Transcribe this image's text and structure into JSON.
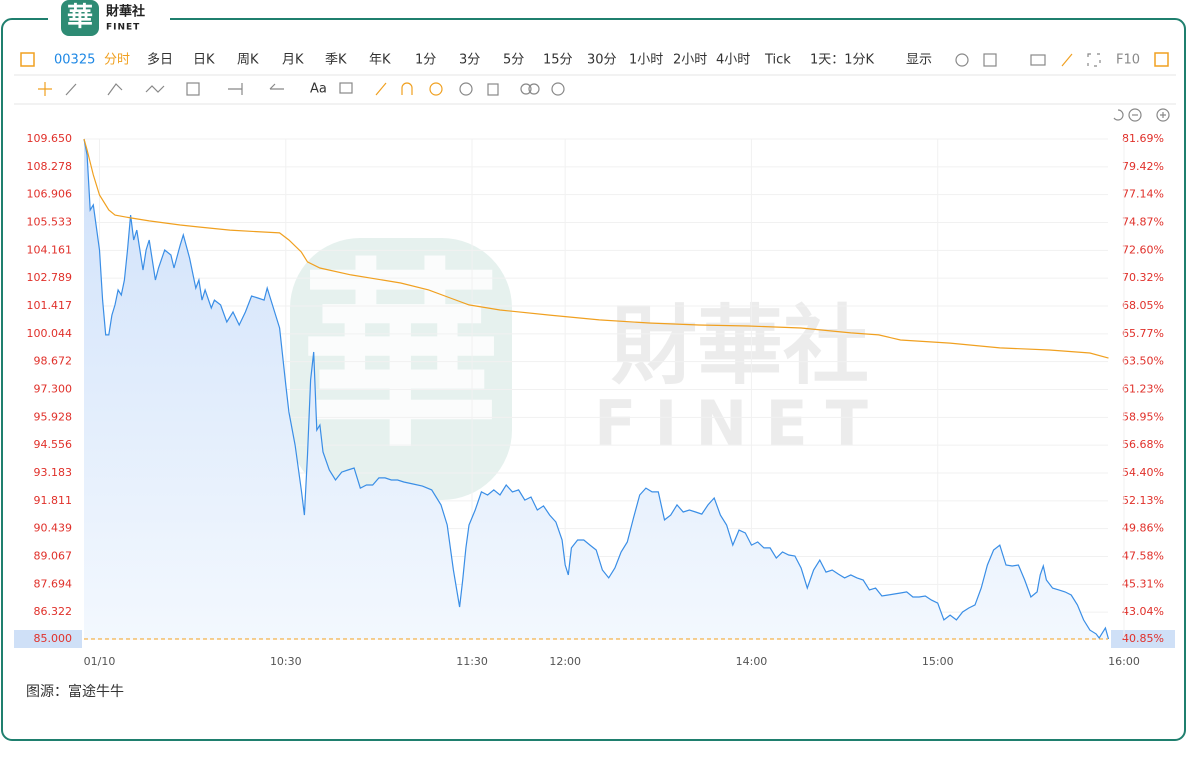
{
  "header": {
    "brand": "財華社",
    "brand_en": "FINET",
    "logo_char": "華"
  },
  "toolbar": {
    "code": "00325",
    "periods": [
      "分时",
      "多日",
      "日K",
      "周K",
      "月K",
      "季K",
      "年K",
      "1分",
      "3分",
      "5分",
      "15分",
      "30分",
      "1小时",
      "2小时",
      "4小时",
      "Tick"
    ],
    "interval": "1天：1分K",
    "display": "显示",
    "f10": "F10",
    "font": "Aa"
  },
  "watermark": {
    "seal": "華",
    "text": "財華社",
    "text_en": "FINET"
  },
  "source": "图源：富途牛牛",
  "chart_data": {
    "type": "line",
    "xlim": [
      -5,
      330
    ],
    "xticks": [
      {
        "value": 0,
        "label": "01/10"
      },
      {
        "value": 60,
        "label": "10:30"
      },
      {
        "value": 120,
        "label": "11:30"
      },
      {
        "value": 150,
        "label": "12:00"
      },
      {
        "value": 210,
        "label": "14:00"
      },
      {
        "value": 270,
        "label": "15:00"
      },
      {
        "value": 330,
        "label": "16:00"
      }
    ],
    "ylim": [
      85,
      109.65
    ],
    "yticks": [
      {
        "value": 109.65,
        "label": "109.650"
      },
      108.278,
      106.906,
      105.533,
      104.161,
      102.789,
      101.417,
      100.044,
      98.672,
      {
        "value": 97.3,
        "label": "97.300"
      },
      95.928,
      94.556,
      93.183,
      91.811,
      90.439,
      89.067,
      87.694,
      86.322,
      {
        "value": 85,
        "label": "85.000"
      }
    ],
    "y2lim": [
      40.85,
      81.69
    ],
    "y2ticks": [
      {
        "value": 81.69,
        "label": "81.69%"
      },
      {
        "value": 79.42,
        "label": "79.42%"
      },
      {
        "value": 77.14,
        "label": "77.14%"
      },
      {
        "value": 74.87,
        "label": "74.87%"
      },
      {
        "value": 72.6,
        "label": "72.60%"
      },
      {
        "value": 70.32,
        "label": "70.32%"
      },
      {
        "value": 68.05,
        "label": "68.05%"
      },
      {
        "value": 65.77,
        "label": "65.77%"
      },
      {
        "value": 63.5,
        "label": "63.50%"
      },
      {
        "value": 61.23,
        "label": "61.23%"
      },
      {
        "value": 58.95,
        "label": "58.95%"
      },
      {
        "value": 56.68,
        "label": "56.68%"
      },
      {
        "value": 54.4,
        "label": "54.40%"
      },
      {
        "value": 52.13,
        "label": "52.13%"
      },
      {
        "value": 49.86,
        "label": "49.86%"
      },
      {
        "value": 47.58,
        "label": "47.58%"
      },
      {
        "value": 45.31,
        "label": "45.31%"
      },
      {
        "value": 43.04,
        "label": "43.04%"
      },
      {
        "value": 40.85,
        "label": "40.85%"
      }
    ],
    "grid": true,
    "reference_value": 85,
    "series": [
      {
        "color": "#3a8ee6",
        "area": true,
        "x": [
          -5,
          -4,
          -3,
          -2,
          0,
          1,
          2,
          3,
          4,
          5,
          6,
          7,
          8,
          9,
          10,
          11,
          12,
          14,
          15,
          16,
          18,
          19,
          21,
          23,
          24,
          26,
          27,
          29,
          31,
          32,
          33,
          34,
          36,
          37,
          39,
          41,
          43,
          45,
          47,
          49,
          51,
          53,
          54,
          56,
          58,
          60,
          61,
          63,
          65,
          66,
          67,
          68,
          69,
          70,
          71,
          72,
          74,
          76,
          78,
          80,
          82,
          84,
          86,
          88,
          90,
          92,
          94,
          96,
          98,
          101,
          104,
          107,
          110,
          112,
          114,
          116,
          117,
          118,
          119,
          121,
          123,
          125,
          127,
          129,
          131,
          133,
          135,
          137,
          139,
          141,
          143,
          145,
          147,
          149,
          150,
          151,
          152,
          154,
          156,
          158,
          160,
          162,
          164,
          166,
          168,
          170,
          172,
          174,
          176,
          178,
          180,
          182,
          184,
          186,
          188,
          190,
          192,
          194,
          196,
          198,
          200,
          202,
          204,
          206,
          208,
          210,
          212,
          214,
          216,
          218,
          220,
          222,
          224,
          226,
          228,
          230,
          232,
          234,
          236,
          238,
          240,
          242,
          244,
          246,
          248,
          250,
          252,
          254,
          256,
          258,
          260,
          262,
          264,
          266,
          268,
          270,
          272,
          274,
          276,
          278,
          280,
          282,
          284,
          286,
          288,
          290,
          292,
          294,
          296,
          298,
          300,
          302,
          303,
          304,
          305,
          307,
          309,
          311,
          313,
          315,
          317,
          319,
          321,
          322,
          323,
          324,
          325
        ],
        "values": [
          109.65,
          108.86,
          106.15,
          106.4,
          104.18,
          101.71,
          99.99,
          99.99,
          100.97,
          101.47,
          102.21,
          101.96,
          102.7,
          104.18,
          105.9,
          104.67,
          105.16,
          103.19,
          104.18,
          104.67,
          102.7,
          103.29,
          104.18,
          103.93,
          103.29,
          104.42,
          104.92,
          103.78,
          102.3,
          102.7,
          101.71,
          102.21,
          101.32,
          101.71,
          101.47,
          100.63,
          101.12,
          100.48,
          101.12,
          101.91,
          101.81,
          101.71,
          102.3,
          101.32,
          100.33,
          97.52,
          96.19,
          94.56,
          92.35,
          91.11,
          94.07,
          97.77,
          99.15,
          95.3,
          95.55,
          94.22,
          93.33,
          92.84,
          93.23,
          93.33,
          93.43,
          92.44,
          92.59,
          92.59,
          92.94,
          92.94,
          92.84,
          92.84,
          92.74,
          92.64,
          92.54,
          92.35,
          91.61,
          90.62,
          88.4,
          86.58,
          87.91,
          89.49,
          90.62,
          91.36,
          92.25,
          92.1,
          92.35,
          92.1,
          92.59,
          92.25,
          92.35,
          91.85,
          92.0,
          91.36,
          91.56,
          91.11,
          90.77,
          89.88,
          88.65,
          88.16,
          89.49,
          89.88,
          89.88,
          89.63,
          89.39,
          88.4,
          88.01,
          88.5,
          89.29,
          89.78,
          90.97,
          92.1,
          92.44,
          92.25,
          92.25,
          90.87,
          91.11,
          91.61,
          91.26,
          91.36,
          91.26,
          91.16,
          91.61,
          91.95,
          91.11,
          90.62,
          89.63,
          90.37,
          90.23,
          89.63,
          89.78,
          89.49,
          89.49,
          88.99,
          89.29,
          89.14,
          89.09,
          88.5,
          87.51,
          88.4,
          88.89,
          88.3,
          88.4,
          88.2,
          88.01,
          88.16,
          88.01,
          87.91,
          87.42,
          87.51,
          87.12,
          87.17,
          87.22,
          87.27,
          87.32,
          87.07,
          87.07,
          87.12,
          86.92,
          86.77,
          85.94,
          86.18,
          85.94,
          86.33,
          86.53,
          86.68,
          87.51,
          88.65,
          89.39,
          89.63,
          88.65,
          88.6,
          88.65,
          87.91,
          87.07,
          87.32,
          88.16,
          88.6,
          87.91,
          87.51,
          87.42,
          87.32,
          87.17,
          86.68,
          85.94,
          85.44,
          85.25,
          85.05,
          85.3,
          85.54,
          85.0
        ]
      },
      {
        "color": "#f0a020",
        "x": [
          -5,
          -4,
          -2,
          0,
          3,
          5,
          10,
          16,
          26,
          32,
          42,
          52,
          58,
          61,
          65,
          67,
          71,
          81,
          97,
          106,
          113,
          119,
          129,
          145,
          161,
          177,
          193,
          209,
          226,
          242,
          251,
          258,
          274,
          290,
          306,
          319,
          325
        ],
        "values": [
          109.65,
          109.11,
          107.88,
          106.89,
          106.15,
          105.9,
          105.76,
          105.61,
          105.41,
          105.31,
          105.16,
          105.07,
          105.02,
          104.67,
          104.08,
          103.59,
          103.29,
          102.95,
          102.55,
          102.21,
          101.81,
          101.47,
          101.22,
          100.97,
          100.73,
          100.58,
          100.48,
          100.43,
          100.33,
          100.09,
          99.99,
          99.74,
          99.59,
          99.35,
          99.25,
          99.1,
          98.85
        ]
      }
    ]
  }
}
